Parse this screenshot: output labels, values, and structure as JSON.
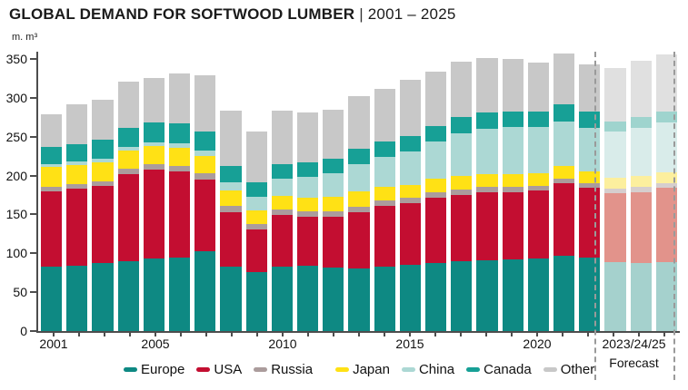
{
  "title": {
    "main": "GLOBAL DEMAND FOR SOFTWOOD LUMBER",
    "separator": "|",
    "range": "2001 – 2025"
  },
  "y_axis_unit": "m. m³",
  "forecast_box": {
    "year_label": "2023/24/25",
    "caption": "Forecast"
  },
  "chart_data": {
    "type": "bar",
    "stacked": true,
    "title": "GLOBAL DEMAND FOR SOFTWOOD LUMBER | 2001 – 2025",
    "ylabel": "m. m³",
    "xlabel": "",
    "ylim": [
      0,
      350
    ],
    "yticks": [
      0,
      50,
      100,
      150,
      200,
      250,
      300,
      350
    ],
    "grid": false,
    "legend_position": "bottom",
    "categories": [
      2001,
      2002,
      2003,
      2004,
      2005,
      2006,
      2007,
      2008,
      2009,
      2010,
      2011,
      2012,
      2013,
      2014,
      2015,
      2016,
      2017,
      2018,
      2019,
      2020,
      2021,
      2022,
      2023,
      2024,
      2025
    ],
    "xticks": [
      {
        "label": "2001",
        "bar": 0
      },
      {
        "label": "2005",
        "bar": 4
      },
      {
        "label": "2010",
        "bar": 9
      },
      {
        "label": "2015",
        "bar": 14
      },
      {
        "label": "2020",
        "bar": 19
      }
    ],
    "forecast": {
      "start_index": 22,
      "years": [
        2023,
        2024,
        2025
      ],
      "label": "2023/24/25",
      "caption": "Forecast"
    },
    "series": [
      {
        "name": "Europe",
        "color": "#0E8983",
        "forecast_color": "#A5D1CD",
        "values": [
          83,
          84,
          87,
          90,
          93,
          94,
          103,
          83,
          76,
          83,
          84,
          82,
          81,
          83,
          85,
          87,
          90,
          91,
          92,
          93,
          97,
          94,
          89,
          87,
          89
        ]
      },
      {
        "name": "USA",
        "color": "#C30E31",
        "forecast_color": "#E2938B",
        "values": [
          97,
          99,
          100,
          112,
          115,
          111,
          92,
          70,
          55,
          66,
          63,
          65,
          72,
          78,
          79,
          85,
          85,
          87,
          87,
          88,
          93,
          90,
          88,
          92,
          95
        ]
      },
      {
        "name": "Russia",
        "color": "#AB9C9C",
        "forecast_color": "#D6CECE",
        "values": [
          6,
          6,
          6,
          7,
          7,
          7,
          8,
          8,
          7,
          7,
          7,
          7,
          7,
          7,
          7,
          7,
          7,
          7,
          7,
          6,
          6,
          6,
          6,
          6,
          6
        ]
      },
      {
        "name": "Japan",
        "color": "#FFE115",
        "forecast_color": "#FCEF9E",
        "values": [
          25,
          25,
          24,
          23,
          23,
          24,
          22,
          20,
          17,
          18,
          18,
          19,
          20,
          18,
          17,
          17,
          17,
          17,
          16,
          16,
          16,
          16,
          14,
          14,
          14
        ]
      },
      {
        "name": "China",
        "color": "#ACD8D4",
        "forecast_color": "#D9ECEA",
        "values": [
          4,
          4,
          5,
          5,
          5,
          6,
          7,
          10,
          18,
          22,
          26,
          30,
          35,
          38,
          43,
          48,
          55,
          58,
          60,
          60,
          58,
          56,
          60,
          62,
          64
        ]
      },
      {
        "name": "Canada",
        "color": "#17A096",
        "forecast_color": "#9FD4CE",
        "values": [
          22,
          23,
          24,
          25,
          25,
          25,
          25,
          21,
          19,
          19,
          19,
          19,
          20,
          20,
          20,
          20,
          21,
          21,
          20,
          20,
          22,
          20,
          13,
          14,
          14
        ]
      },
      {
        "name": "Other",
        "color": "#C8C8C8",
        "forecast_color": "#E0E0E0",
        "values": [
          42,
          51,
          51,
          59,
          57,
          65,
          72,
          72,
          65,
          68,
          64,
          63,
          67,
          68,
          72,
          70,
          72,
          70,
          68,
          63,
          65,
          61,
          68,
          73,
          74
        ]
      }
    ]
  }
}
